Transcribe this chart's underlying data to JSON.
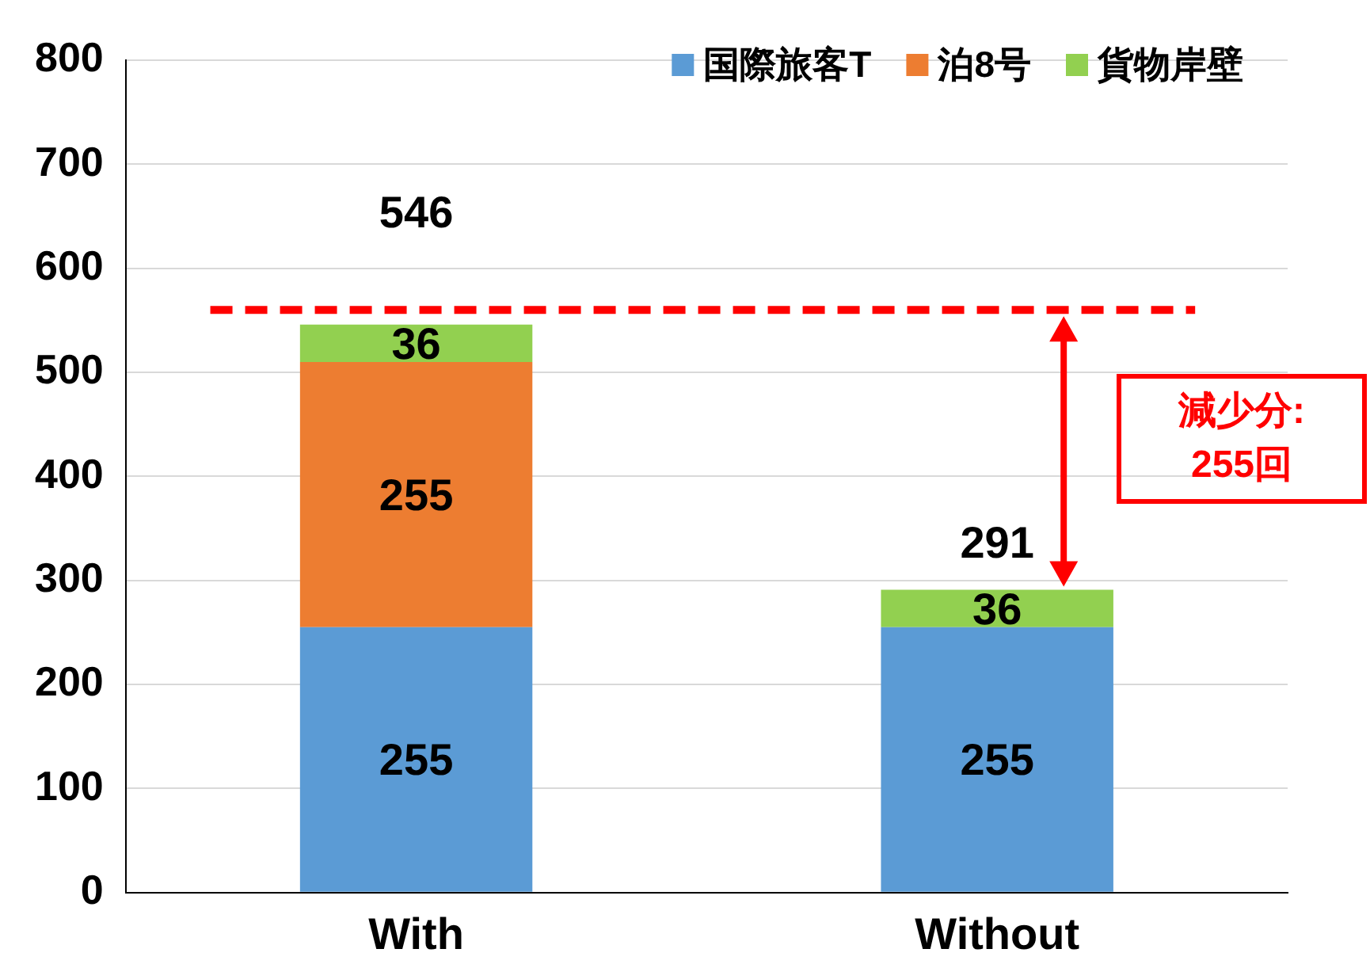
{
  "chart_data": {
    "type": "bar",
    "stacked": true,
    "categories": [
      "With",
      "Without"
    ],
    "series": [
      {
        "name": "国際旅客T",
        "color": "#5b9bd5",
        "values": [
          255,
          255
        ]
      },
      {
        "name": "泊8号",
        "color": "#ed7d31",
        "values": [
          255,
          null
        ]
      },
      {
        "name": "貨物岸壁",
        "color": "#92d050",
        "values": [
          36,
          36
        ]
      }
    ],
    "ylim": [
      0,
      800
    ],
    "yticks": [
      0,
      100,
      200,
      300,
      400,
      500,
      600,
      700,
      800
    ],
    "grid": "y",
    "legend": "top right",
    "data_labels": true,
    "totals": [
      "546",
      "291"
    ],
    "ref_lines": [
      {
        "axis": "y",
        "value": 560,
        "color": "#ff0000",
        "line_style": "dashed"
      }
    ],
    "annotations": [
      "減少分:\n255回"
    ]
  }
}
